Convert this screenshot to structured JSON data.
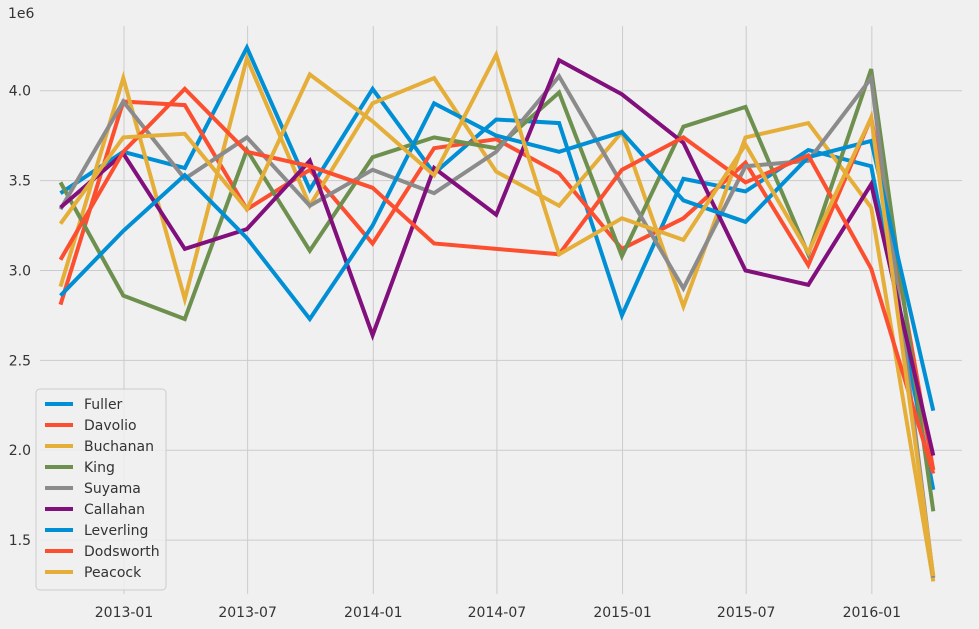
{
  "chart_data": {
    "type": "line",
    "scale_label": "1e6",
    "x_tick_labels": [
      "2013-01",
      "2013-07",
      "2014-01",
      "2014-07",
      "2015-01",
      "2015-07",
      "2016-01"
    ],
    "x_ticks": [
      "2013-01-01",
      "2013-07-01",
      "2014-01-01",
      "2014-07-01",
      "2015-01-01",
      "2015-07-01",
      "2016-01-01"
    ],
    "xlim": [
      "2012-08-31",
      "2016-05-12"
    ],
    "y_ticks": [
      1.5,
      2.0,
      2.5,
      3.0,
      3.5,
      4.0
    ],
    "y_tick_labels": [
      "1.5",
      "2.0",
      "2.5",
      "3.0",
      "3.5",
      "4.0"
    ],
    "ylim": [
      1.2,
      4.36
    ],
    "grid": true,
    "legend_position": "lower-left",
    "x": [
      "2012-09-30",
      "2012-12-31",
      "2013-03-31",
      "2013-06-30",
      "2013-09-30",
      "2013-12-31",
      "2014-03-31",
      "2014-06-30",
      "2014-09-30",
      "2014-12-31",
      "2015-03-31",
      "2015-06-30",
      "2015-09-30",
      "2015-12-31",
      "2016-03-31"
    ],
    "series": [
      {
        "name": "Fuller",
        "color": "#008fd5",
        "values": [
          3.43,
          3.66,
          3.57,
          4.24,
          3.45,
          4.01,
          3.54,
          3.84,
          3.82,
          2.75,
          3.51,
          3.44,
          3.67,
          3.58,
          1.78
        ]
      },
      {
        "name": "Davolio",
        "color": "#fc4f30",
        "values": [
          2.81,
          3.94,
          3.92,
          3.34,
          3.56,
          3.15,
          3.68,
          3.73,
          3.54,
          3.12,
          3.29,
          3.6,
          3.03,
          3.85,
          1.89
        ]
      },
      {
        "name": "Buchanan",
        "color": "#e5ae38",
        "values": [
          2.91,
          4.07,
          2.84,
          4.18,
          3.36,
          3.93,
          4.07,
          3.55,
          3.36,
          3.77,
          2.8,
          3.74,
          3.82,
          3.35,
          1.27
        ]
      },
      {
        "name": "King",
        "color": "#6d904f",
        "values": [
          3.49,
          2.86,
          2.73,
          3.67,
          3.11,
          3.63,
          3.74,
          3.68,
          3.99,
          3.08,
          3.8,
          3.91,
          3.09,
          4.12,
          1.66
        ]
      },
      {
        "name": "Suyama",
        "color": "#8b8b8b",
        "values": [
          3.34,
          3.94,
          3.51,
          3.74,
          3.36,
          3.56,
          3.43,
          3.66,
          4.08,
          3.48,
          2.9,
          3.58,
          3.61,
          4.07,
          1.29
        ]
      },
      {
        "name": "Callahan",
        "color": "#810f7c",
        "values": [
          3.35,
          3.65,
          3.12,
          3.23,
          3.61,
          2.64,
          3.57,
          3.31,
          4.17,
          3.98,
          3.71,
          3.0,
          2.92,
          3.48,
          1.97
        ]
      },
      {
        "name": "Leverling",
        "color": "#008fd5",
        "values": [
          2.86,
          3.22,
          3.53,
          3.18,
          2.73,
          3.25,
          3.93,
          3.75,
          3.66,
          3.77,
          3.39,
          3.27,
          3.63,
          3.72,
          2.22
        ]
      },
      {
        "name": "Dodsworth",
        "color": "#fc4f30",
        "values": [
          3.06,
          3.66,
          4.01,
          3.66,
          3.58,
          3.46,
          3.15,
          3.12,
          3.09,
          3.56,
          3.74,
          3.49,
          3.64,
          3.01,
          1.87
        ]
      },
      {
        "name": "Peacock",
        "color": "#e5ae38",
        "values": [
          3.26,
          3.74,
          3.76,
          3.34,
          4.09,
          3.83,
          3.53,
          4.2,
          3.09,
          3.29,
          3.17,
          3.7,
          3.1,
          3.85,
          1.3
        ]
      }
    ]
  }
}
